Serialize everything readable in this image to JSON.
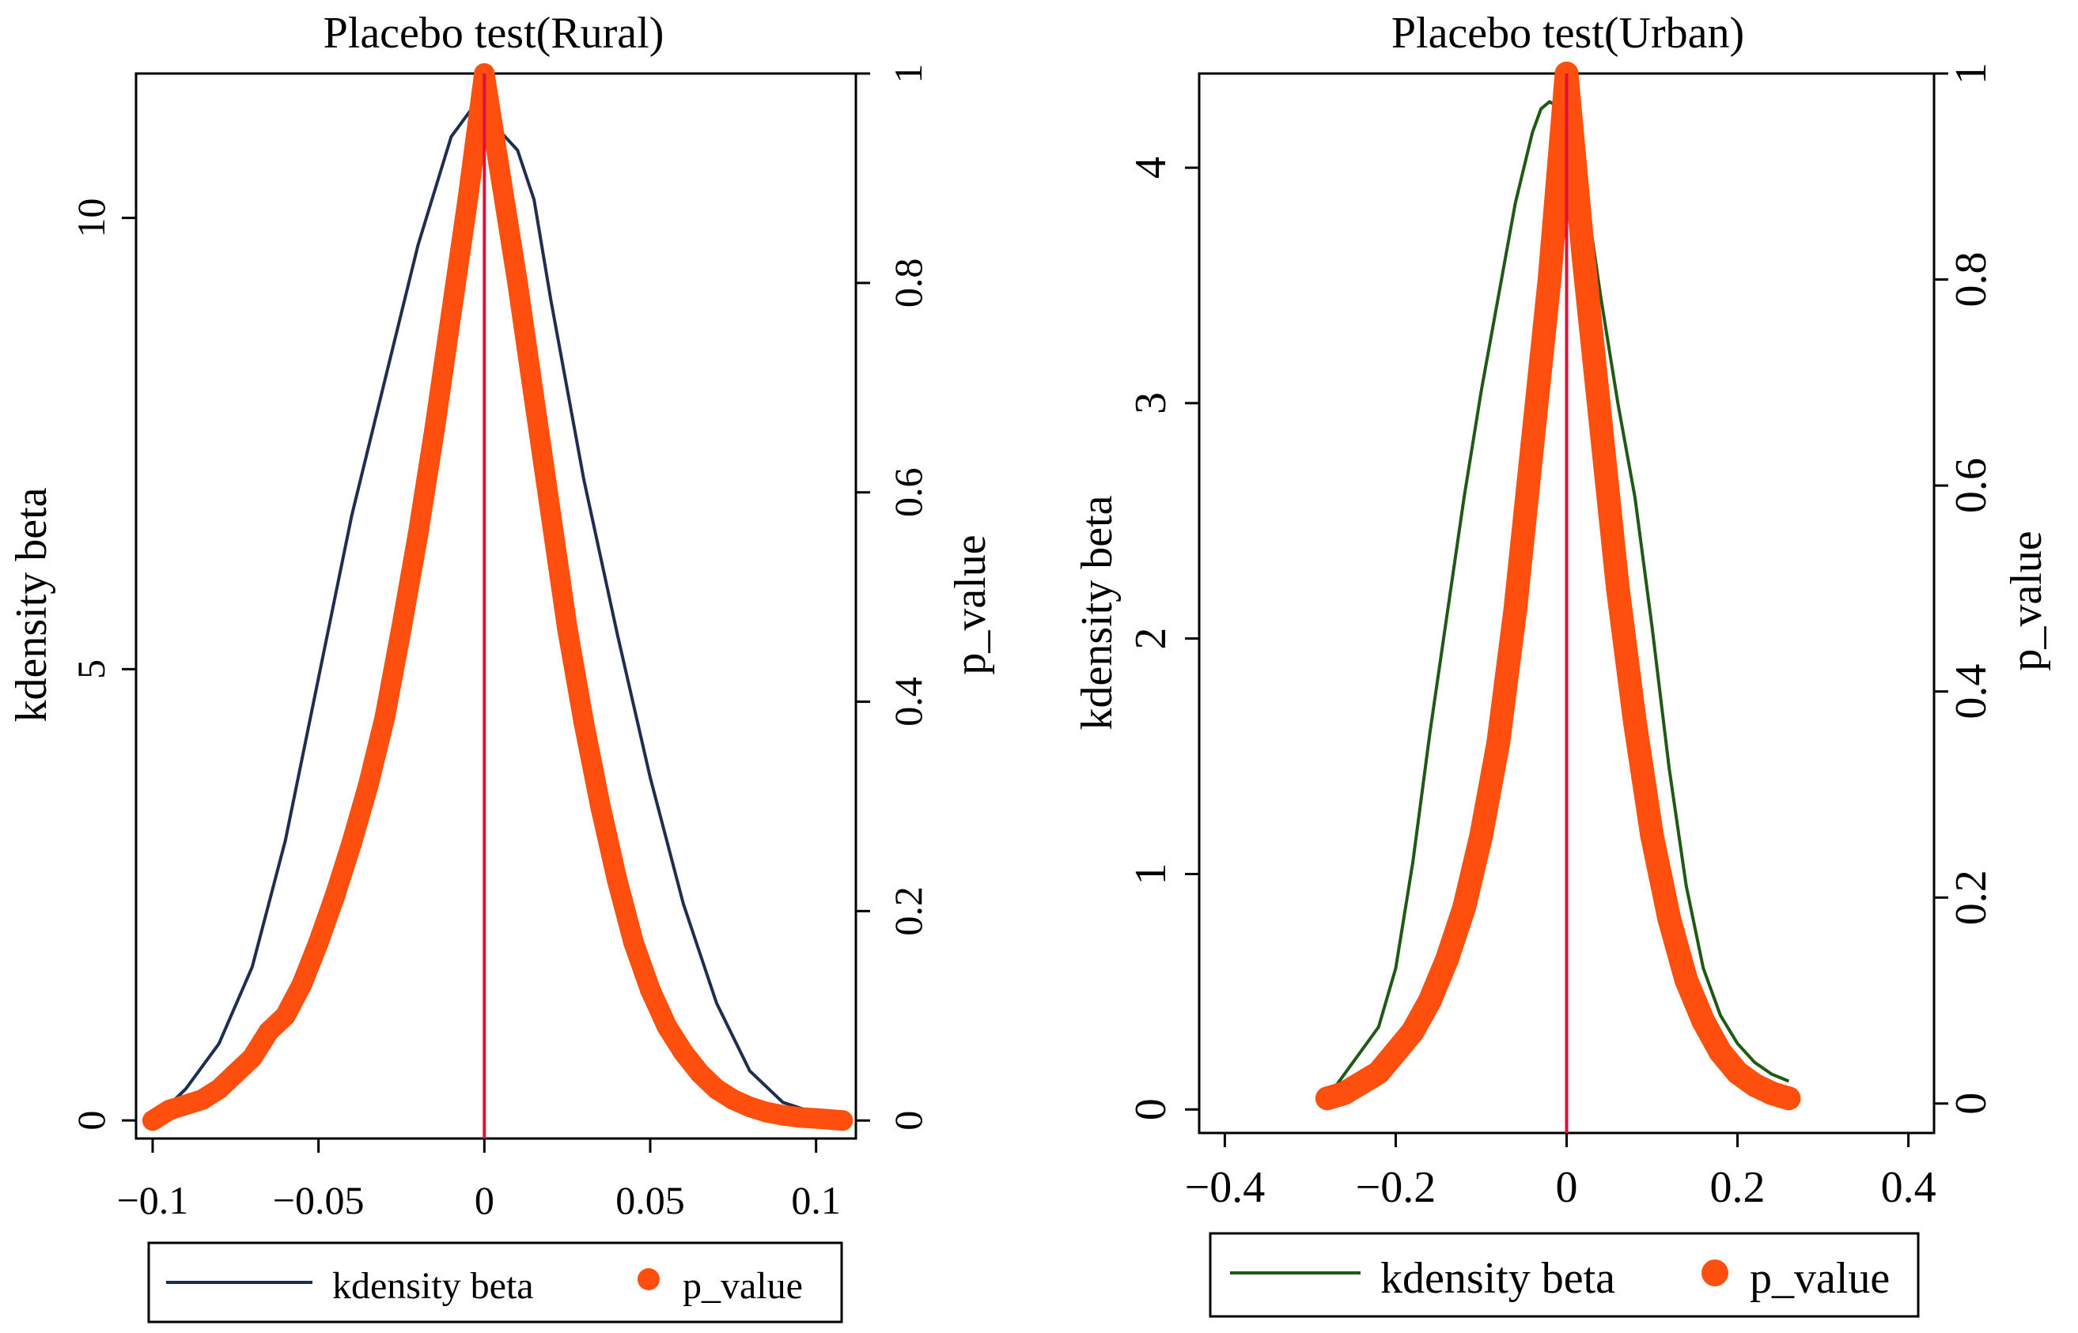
{
  "chart_data": [
    {
      "type": "line+scatter",
      "title": "Placebo test(Rural)",
      "xlabel": "",
      "ylabel_left": "kdensity beta",
      "ylabel_right": "p_value",
      "xlim": [
        -0.105,
        0.112
      ],
      "ylim_left": [
        -0.2,
        11.6
      ],
      "ylim_right": [
        -0.0172,
        1.0
      ],
      "x_ticks": [
        -0.1,
        -0.05,
        0,
        0.05,
        0.1
      ],
      "x_tick_labels": [
        "−0.1",
        "−0.05",
        "0",
        "0.05",
        "0.1"
      ],
      "y_left_ticks": [
        0,
        5,
        10
      ],
      "y_left_tick_labels": [
        "0",
        "5",
        "10"
      ],
      "y_right_ticks": [
        0,
        0.2,
        0.4,
        0.6,
        0.8,
        1
      ],
      "y_right_tick_labels": [
        "0",
        "0.2",
        "0.4",
        "0.6",
        "0.8",
        "1"
      ],
      "vline_x": 0,
      "kdensity": {
        "name": "kdensity beta",
        "color": "#1f2d4f",
        "x": [
          -0.097,
          -0.09,
          -0.08,
          -0.07,
          -0.06,
          -0.05,
          -0.04,
          -0.03,
          -0.02,
          -0.01,
          -0.003,
          0,
          0.005,
          0.01,
          0.015,
          0.02,
          0.03,
          0.04,
          0.05,
          0.06,
          0.07,
          0.08,
          0.09,
          0.1,
          0.108
        ],
        "y": [
          0.1,
          0.35,
          0.85,
          1.7,
          3.1,
          4.9,
          6.7,
          8.2,
          9.7,
          10.9,
          11.25,
          11.1,
          10.95,
          10.75,
          10.2,
          9.1,
          7.1,
          5.4,
          3.8,
          2.4,
          1.3,
          0.55,
          0.2,
          0.08,
          0.05
        ]
      },
      "p_value": {
        "name": "p_value",
        "color": "#ff4f0f",
        "x": [
          -0.1,
          -0.095,
          -0.09,
          -0.085,
          -0.08,
          -0.075,
          -0.07,
          -0.065,
          -0.06,
          -0.055,
          -0.05,
          -0.045,
          -0.04,
          -0.035,
          -0.03,
          -0.025,
          -0.02,
          -0.015,
          -0.01,
          -0.005,
          0,
          0.005,
          0.01,
          0.015,
          0.02,
          0.025,
          0.03,
          0.035,
          0.04,
          0.045,
          0.05,
          0.055,
          0.06,
          0.065,
          0.07,
          0.075,
          0.08,
          0.085,
          0.09,
          0.095,
          0.1,
          0.108
        ],
        "y": [
          0.0,
          0.01,
          0.015,
          0.02,
          0.03,
          0.045,
          0.06,
          0.085,
          0.1,
          0.13,
          0.17,
          0.215,
          0.265,
          0.32,
          0.385,
          0.47,
          0.56,
          0.66,
          0.77,
          0.88,
          1.0,
          0.9,
          0.8,
          0.69,
          0.58,
          0.47,
          0.38,
          0.3,
          0.23,
          0.17,
          0.125,
          0.09,
          0.065,
          0.045,
          0.03,
          0.02,
          0.013,
          0.008,
          0.005,
          0.003,
          0.002,
          0.0
        ]
      },
      "legend": [
        "kdensity beta",
        "p_value"
      ],
      "legend_position": "bottom"
    },
    {
      "type": "line+scatter",
      "title": "Placebo test(Urban)",
      "xlabel": "",
      "ylabel_left": "kdensity beta",
      "ylabel_right": "p_value",
      "xlim": [
        -0.43,
        0.43
      ],
      "ylim_left": [
        -0.1,
        4.4
      ],
      "ylim_right": [
        -0.0286,
        1.0
      ],
      "x_ticks": [
        -0.4,
        -0.2,
        0,
        0.2,
        0.4
      ],
      "x_tick_labels": [
        "−0.4",
        "−0.2",
        "0",
        "0.2",
        "0.4"
      ],
      "y_left_ticks": [
        0,
        1,
        2,
        3,
        4
      ],
      "y_left_tick_labels": [
        "0",
        "1",
        "2",
        "3",
        "4"
      ],
      "y_right_ticks": [
        0,
        0.2,
        0.4,
        0.6,
        0.8,
        1
      ],
      "y_right_tick_labels": [
        "0",
        "0.2",
        "0.4",
        "0.6",
        "0.8",
        "1"
      ],
      "vline_x": 0,
      "kdensity": {
        "name": "kdensity beta",
        "color": "#1e5a14",
        "x": [
          -0.28,
          -0.25,
          -0.22,
          -0.2,
          -0.18,
          -0.16,
          -0.14,
          -0.12,
          -0.1,
          -0.08,
          -0.06,
          -0.04,
          -0.03,
          -0.02,
          -0.01,
          0,
          0.01,
          0.02,
          0.03,
          0.04,
          0.06,
          0.08,
          0.1,
          0.12,
          0.14,
          0.16,
          0.18,
          0.2,
          0.22,
          0.24,
          0.26
        ],
        "y": [
          0.05,
          0.2,
          0.35,
          0.6,
          1.05,
          1.6,
          2.1,
          2.6,
          3.05,
          3.45,
          3.85,
          4.15,
          4.25,
          4.28,
          4.26,
          4.2,
          4.05,
          3.9,
          3.7,
          3.45,
          3.0,
          2.6,
          2.05,
          1.45,
          0.95,
          0.6,
          0.4,
          0.28,
          0.2,
          0.15,
          0.12
        ]
      },
      "p_value": {
        "name": "p_value",
        "color": "#ff4f0f",
        "x": [
          -0.28,
          -0.26,
          -0.24,
          -0.22,
          -0.2,
          -0.18,
          -0.16,
          -0.14,
          -0.12,
          -0.1,
          -0.08,
          -0.06,
          -0.04,
          -0.02,
          0,
          0.02,
          0.04,
          0.06,
          0.08,
          0.1,
          0.12,
          0.14,
          0.16,
          0.18,
          0.2,
          0.22,
          0.24,
          0.26
        ],
        "y": [
          0.005,
          0.01,
          0.02,
          0.03,
          0.05,
          0.07,
          0.1,
          0.14,
          0.19,
          0.26,
          0.35,
          0.48,
          0.64,
          0.8,
          1.0,
          0.82,
          0.66,
          0.5,
          0.37,
          0.26,
          0.18,
          0.12,
          0.08,
          0.05,
          0.03,
          0.018,
          0.01,
          0.005
        ]
      },
      "legend": [
        "kdensity beta",
        "p_value"
      ],
      "legend_position": "bottom"
    }
  ]
}
